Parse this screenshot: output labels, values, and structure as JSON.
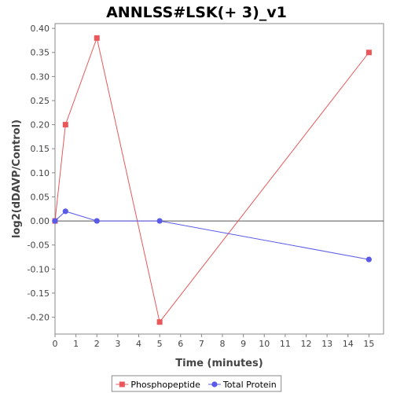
{
  "chart_data": {
    "type": "line",
    "title": "ANNLSS#LSK(+ 3)_v1",
    "xlabel": "Time (minutes)",
    "ylabel": "log2(dDAVP/Control)",
    "xlim": [
      0,
      15.7
    ],
    "ylim": [
      -0.235,
      0.41
    ],
    "xticks": [
      0,
      1,
      2,
      3,
      4,
      5,
      6,
      7,
      8,
      9,
      10,
      11,
      12,
      13,
      14,
      15
    ],
    "xtick_labels": [
      "0",
      "1",
      "2",
      "3",
      "4",
      "5",
      "6",
      "7",
      "8",
      "9",
      "10",
      "11",
      "12",
      "13",
      "14",
      "15"
    ],
    "yticks": [
      0.4,
      0.35,
      0.3,
      0.25,
      0.2,
      0.15,
      0.1,
      0.05,
      0.0,
      -0.05,
      -0.1,
      -0.15,
      -0.2
    ],
    "ytick_labels": [
      "0.40",
      "0.35",
      "0.30",
      "0.25",
      "0.20",
      "0.15",
      "0.10",
      "0.05",
      "0.00",
      "-0.05",
      "-0.10",
      "-0.15",
      "-0.20"
    ],
    "grid": false,
    "zero_line": true,
    "legend_position": "bottom",
    "series": [
      {
        "name": "Phosphopeptide",
        "color": "#e8585a",
        "marker": "square",
        "x": [
          0,
          0.5,
          2,
          5,
          15
        ],
        "y": [
          0.0,
          0.2,
          0.38,
          -0.21,
          0.35
        ]
      },
      {
        "name": "Total Protein",
        "color": "#5a5ae8",
        "marker": "circle",
        "x": [
          0,
          0.5,
          2,
          5,
          15
        ],
        "y": [
          0.0,
          0.02,
          0.0,
          0.0,
          -0.08
        ]
      }
    ]
  }
}
